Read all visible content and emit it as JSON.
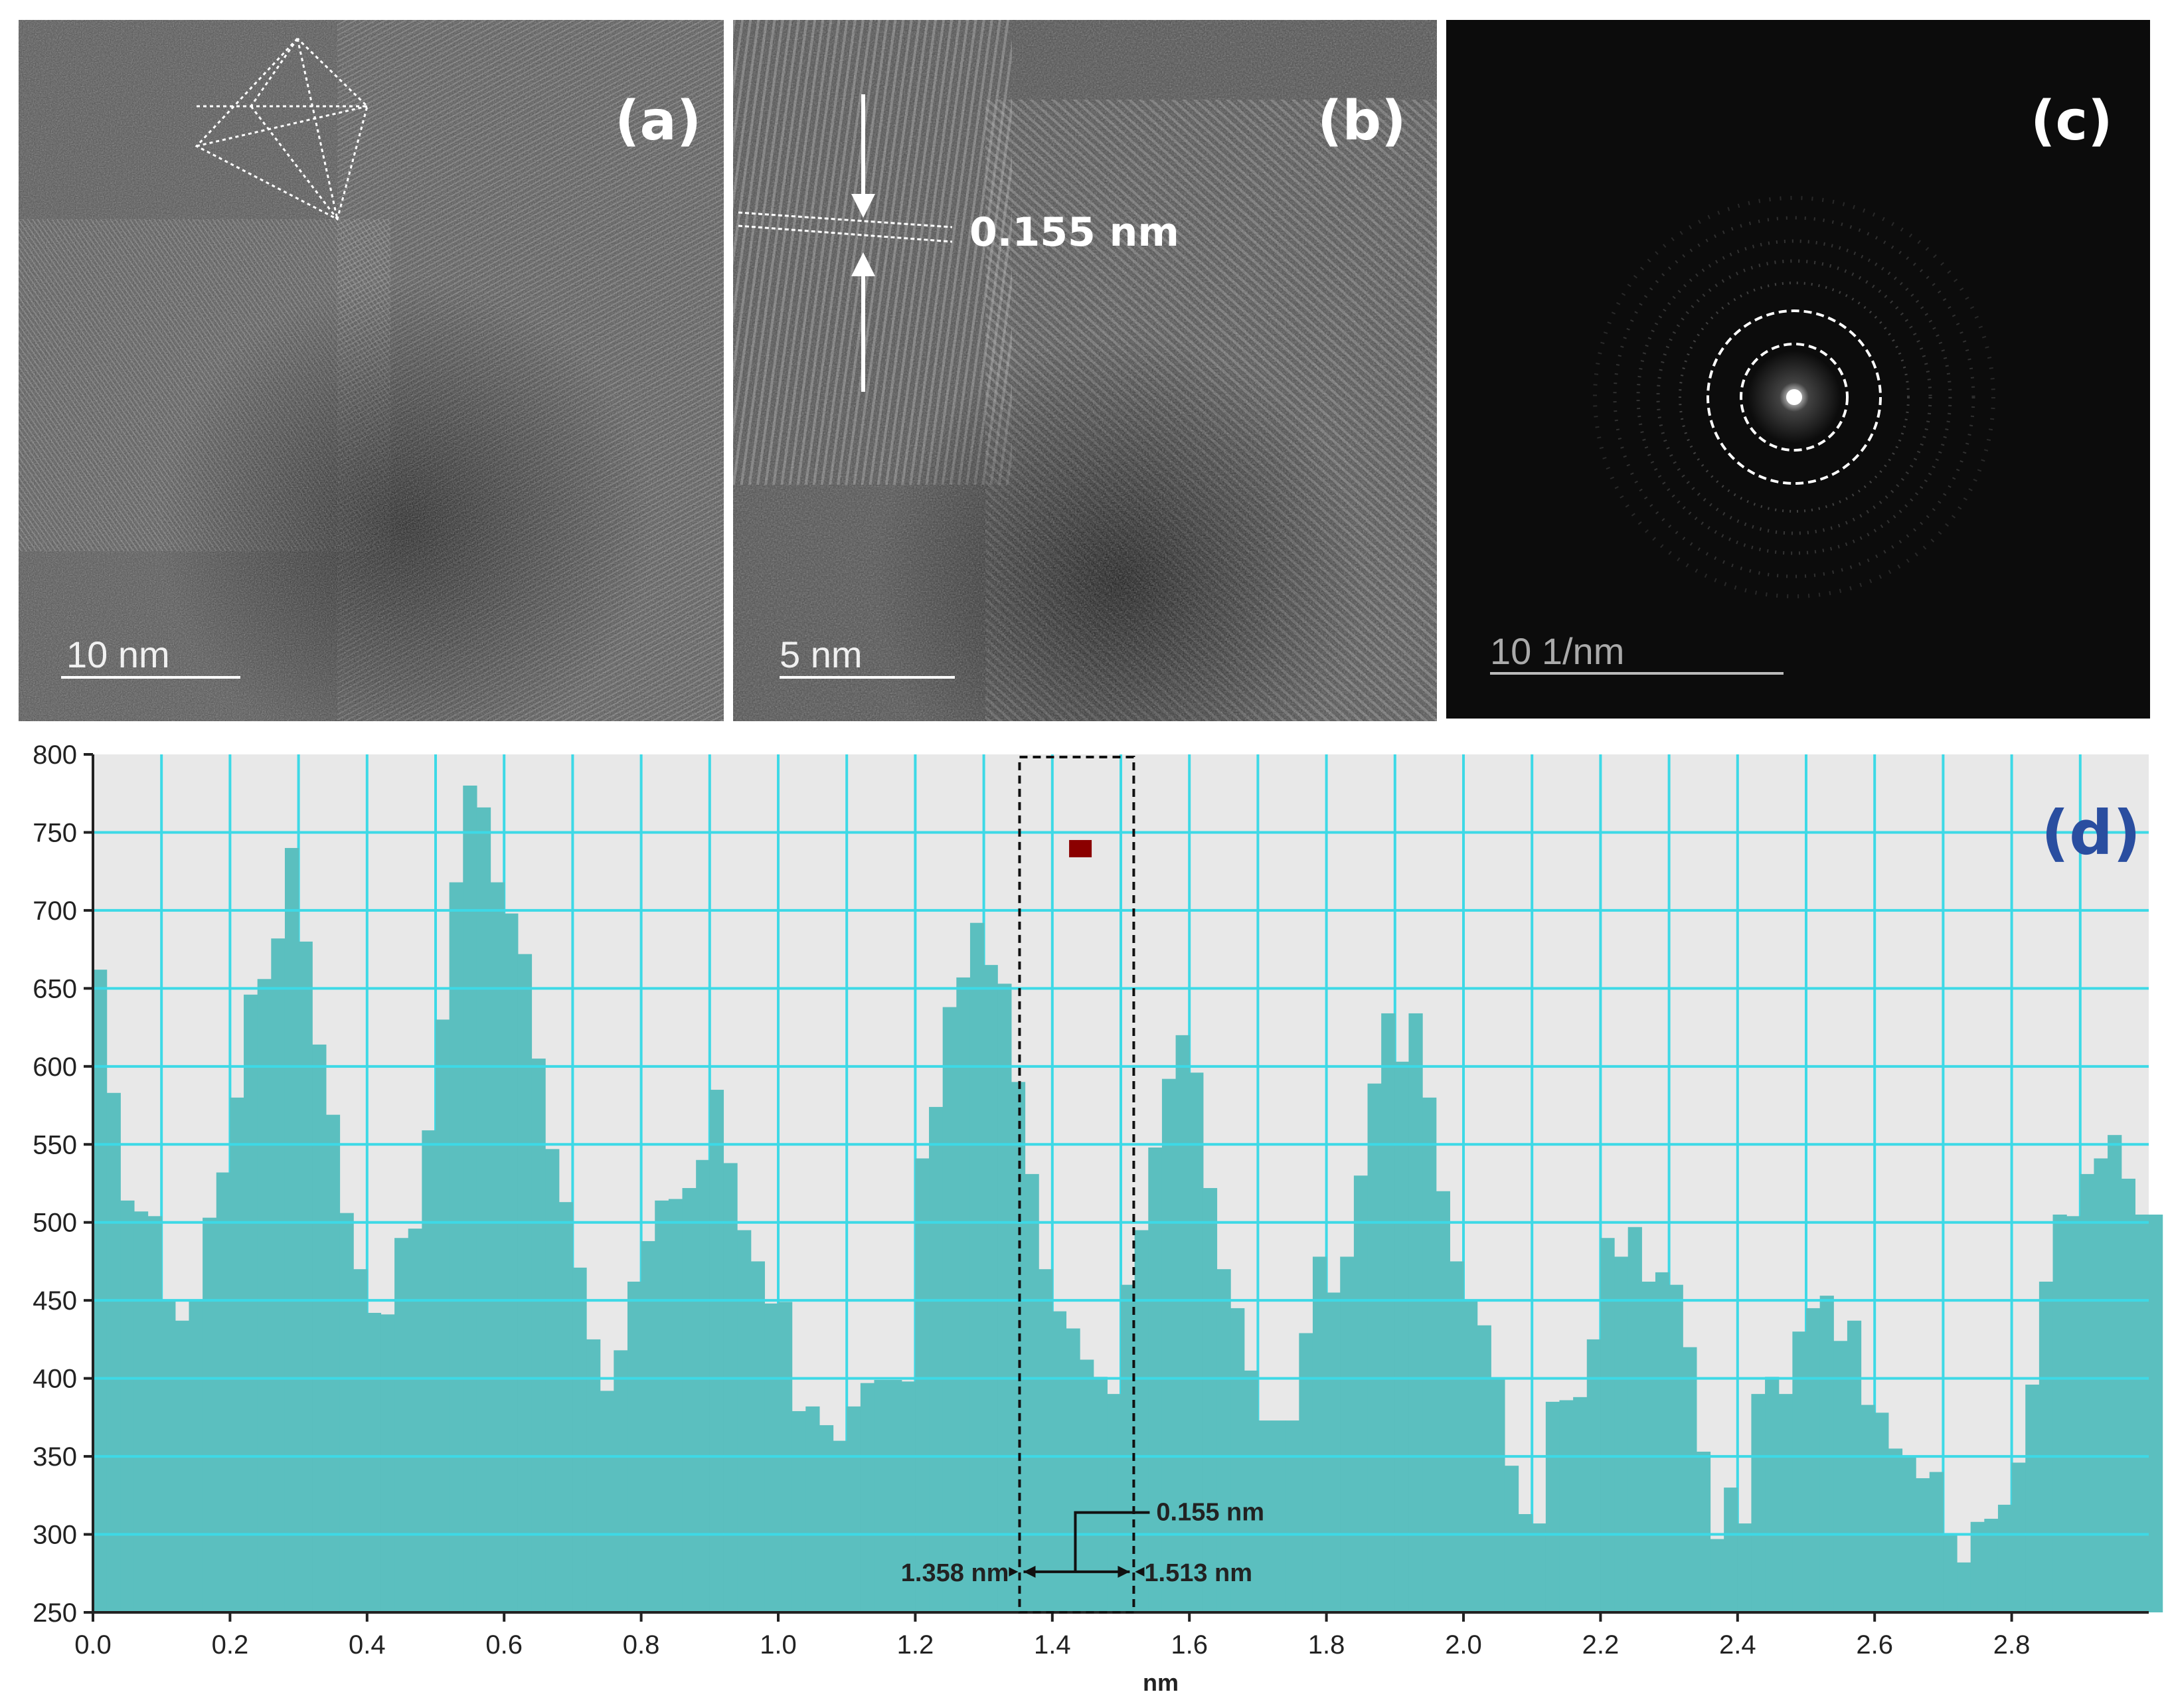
{
  "figure": {
    "panels": [
      {
        "id": "a",
        "label": "(a)",
        "scale_bar": "10  nm"
      },
      {
        "id": "b",
        "label": "(b)",
        "scale_bar": "5  nm",
        "spacing": "0.155 nm"
      },
      {
        "id": "c",
        "label": "(c)",
        "scale_bar": "10  1/nm"
      }
    ]
  },
  "chart_data": {
    "type": "bar",
    "label": "(d)",
    "xlabel": "nm",
    "ylabel": "",
    "xlim": [
      0.0,
      3.0
    ],
    "ylim": [
      250,
      800
    ],
    "x_ticks": [
      "0.0",
      "0.2",
      "0.4",
      "0.6",
      "0.8",
      "1.0",
      "1.2",
      "1.4",
      "1.6",
      "1.8",
      "2.0",
      "2.2",
      "2.4",
      "2.6",
      "2.8"
    ],
    "y_ticks": [
      "250",
      "300",
      "350",
      "400",
      "450",
      "500",
      "550",
      "600",
      "650",
      "700",
      "750",
      "800"
    ],
    "bin_width": 0.02,
    "values": [
      662,
      583,
      514,
      507,
      504,
      450,
      437,
      450,
      503,
      532,
      580,
      646,
      656,
      682,
      740,
      680,
      614,
      569,
      506,
      470,
      442,
      441,
      490,
      496,
      559,
      630,
      718,
      780,
      766,
      718,
      698,
      672,
      605,
      547,
      513,
      471,
      425,
      392,
      418,
      462,
      488,
      514,
      515,
      522,
      540,
      585,
      538,
      495,
      475,
      448,
      449,
      379,
      382,
      370,
      360,
      382,
      397,
      399,
      399,
      398,
      541,
      574,
      638,
      657,
      692,
      665,
      653,
      590,
      531,
      470,
      443,
      432,
      412,
      401,
      390,
      460,
      495,
      548,
      592,
      620,
      596,
      522,
      470,
      445,
      405,
      373,
      373,
      373,
      429,
      478,
      455,
      478,
      530,
      589,
      634,
      603,
      634,
      580,
      520,
      475,
      450,
      434,
      400,
      344,
      313,
      307,
      385,
      386,
      388,
      425,
      490,
      478,
      497,
      462,
      468,
      460,
      420,
      353,
      297,
      330,
      307,
      390,
      401,
      390,
      430,
      445,
      453,
      424,
      437,
      383,
      378,
      355,
      350,
      336,
      340,
      300,
      282,
      308,
      310,
      319,
      346,
      396,
      462,
      505,
      504,
      531,
      541,
      556,
      528,
      505,
      505
    ],
    "marker": {
      "x": 1.44,
      "y": 740,
      "color": "#8b0000"
    },
    "annotation": {
      "start": "1.358 nm",
      "end": "1.513 nm",
      "width": "0.155 nm",
      "x_start": 1.358,
      "x_end": 1.513
    },
    "colors": {
      "bars": "#5bbfbf",
      "grid": "#3dd9e6",
      "background": "#e8e8e8",
      "label": "#2a4ea0"
    }
  }
}
